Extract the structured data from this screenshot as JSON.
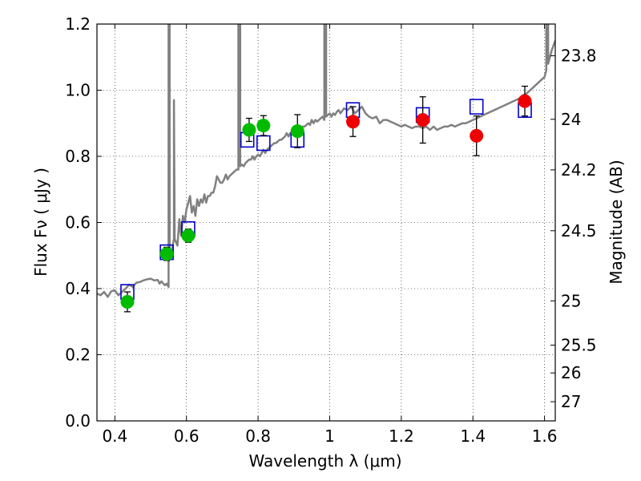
{
  "chart_data": {
    "type": "scatter",
    "title": "",
    "xlabel": "Wavelength  λ (μm)",
    "ylabel": "Flux  Fν  ( μJy )",
    "ylabel_right": "Magnitude (AB)",
    "xlim": [
      0.35,
      1.63
    ],
    "ylim": [
      0.0,
      1.2
    ],
    "grid": true,
    "x_ticks": [
      0.4,
      0.6,
      0.8,
      1.0,
      1.2,
      1.4,
      1.6
    ],
    "x_tick_labels": [
      "0.4",
      "0.6",
      "0.8",
      "1",
      "1.2",
      "1.4",
      "1.6"
    ],
    "y_ticks": [
      0.0,
      0.2,
      0.4,
      0.6,
      0.8,
      1.0,
      1.2
    ],
    "y_tick_labels": [
      "0.0",
      "0.2",
      "0.4",
      "0.6",
      "0.8",
      "1.0",
      "1.2"
    ],
    "right_ticks": [
      {
        "label": "23.8",
        "flux": 1.104
      },
      {
        "label": "24",
        "flux": 0.912
      },
      {
        "label": "24.2",
        "flux": 0.759
      },
      {
        "label": "24.5",
        "flux": 0.575
      },
      {
        "label": "25",
        "flux": 0.363
      },
      {
        "label": "25.5",
        "flux": 0.229
      },
      {
        "label": "26",
        "flux": 0.145
      },
      {
        "label": "27",
        "flux": 0.058
      }
    ],
    "series": [
      {
        "name": "model_spectrum",
        "kind": "line",
        "color": "#808080",
        "points": [
          [
            0.35,
            0.385
          ],
          [
            0.36,
            0.38
          ],
          [
            0.37,
            0.39
          ],
          [
            0.38,
            0.375
          ],
          [
            0.39,
            0.392
          ],
          [
            0.4,
            0.395
          ],
          [
            0.41,
            0.38
          ],
          [
            0.42,
            0.39
          ],
          [
            0.43,
            0.4
          ],
          [
            0.44,
            0.412
          ],
          [
            0.45,
            0.405
          ],
          [
            0.46,
            0.418
          ],
          [
            0.47,
            0.42
          ],
          [
            0.48,
            0.425
          ],
          [
            0.49,
            0.428
          ],
          [
            0.5,
            0.43
          ],
          [
            0.51,
            0.425
          ],
          [
            0.52,
            0.426
          ],
          [
            0.525,
            0.415
          ],
          [
            0.53,
            0.422
          ],
          [
            0.54,
            0.41
          ],
          [
            0.545,
            0.415
          ],
          [
            0.55,
            0.405
          ],
          [
            0.55,
            1.25
          ],
          [
            0.553,
            1.25
          ],
          [
            0.553,
            0.5
          ],
          [
            0.56,
            0.52
          ],
          [
            0.565,
            0.55
          ],
          [
            0.565,
            0.97
          ],
          [
            0.567,
            0.55
          ],
          [
            0.575,
            0.53
          ],
          [
            0.58,
            0.61
          ],
          [
            0.585,
            0.56
          ],
          [
            0.59,
            0.62
          ],
          [
            0.595,
            0.6
          ],
          [
            0.6,
            0.64
          ],
          [
            0.605,
            0.66
          ],
          [
            0.61,
            0.68
          ],
          [
            0.615,
            0.63
          ],
          [
            0.62,
            0.65
          ],
          [
            0.625,
            0.62
          ],
          [
            0.63,
            0.67
          ],
          [
            0.635,
            0.65
          ],
          [
            0.64,
            0.67
          ],
          [
            0.645,
            0.66
          ],
          [
            0.65,
            0.685
          ],
          [
            0.655,
            0.66
          ],
          [
            0.66,
            0.68
          ],
          [
            0.665,
            0.68
          ],
          [
            0.67,
            0.69
          ],
          [
            0.675,
            0.69
          ],
          [
            0.68,
            0.71
          ],
          [
            0.685,
            0.74
          ],
          [
            0.69,
            0.73
          ],
          [
            0.695,
            0.72
          ],
          [
            0.7,
            0.72
          ],
          [
            0.705,
            0.73
          ],
          [
            0.71,
            0.745
          ],
          [
            0.715,
            0.73
          ],
          [
            0.72,
            0.74
          ],
          [
            0.725,
            0.745
          ],
          [
            0.73,
            0.75
          ],
          [
            0.735,
            0.755
          ],
          [
            0.74,
            0.76
          ],
          [
            0.745,
            0.76
          ],
          [
            0.745,
            1.25
          ],
          [
            0.75,
            1.25
          ],
          [
            0.75,
            0.77
          ],
          [
            0.755,
            0.775
          ],
          [
            0.76,
            0.77
          ],
          [
            0.765,
            0.78
          ],
          [
            0.77,
            0.785
          ],
          [
            0.775,
            0.79
          ],
          [
            0.78,
            0.79
          ],
          [
            0.785,
            0.8
          ],
          [
            0.79,
            0.79
          ],
          [
            0.795,
            0.8
          ],
          [
            0.8,
            0.805
          ],
          [
            0.805,
            0.8
          ],
          [
            0.81,
            0.81
          ],
          [
            0.815,
            0.82
          ],
          [
            0.82,
            0.81
          ],
          [
            0.825,
            0.82
          ],
          [
            0.83,
            0.825
          ],
          [
            0.835,
            0.83
          ],
          [
            0.84,
            0.835
          ],
          [
            0.845,
            0.84
          ],
          [
            0.85,
            0.84
          ],
          [
            0.855,
            0.845
          ],
          [
            0.86,
            0.85
          ],
          [
            0.865,
            0.85
          ],
          [
            0.87,
            0.855
          ],
          [
            0.875,
            0.86
          ],
          [
            0.88,
            0.87
          ],
          [
            0.885,
            0.86
          ],
          [
            0.89,
            0.87
          ],
          [
            0.895,
            0.875
          ],
          [
            0.9,
            0.88
          ],
          [
            0.905,
            0.87
          ],
          [
            0.91,
            0.88
          ],
          [
            0.915,
            0.885
          ],
          [
            0.92,
            0.88
          ],
          [
            0.925,
            0.89
          ],
          [
            0.93,
            0.89
          ],
          [
            0.935,
            0.895
          ],
          [
            0.94,
            0.9
          ],
          [
            0.945,
            0.895
          ],
          [
            0.95,
            0.91
          ],
          [
            0.955,
            0.9
          ],
          [
            0.96,
            0.91
          ],
          [
            0.965,
            0.905
          ],
          [
            0.97,
            0.91
          ],
          [
            0.975,
            0.915
          ],
          [
            0.98,
            0.92
          ],
          [
            0.985,
            0.91
          ],
          [
            0.985,
            1.25
          ],
          [
            0.99,
            1.25
          ],
          [
            0.99,
            0.92
          ],
          [
            0.995,
            0.925
          ],
          [
            1.0,
            0.93
          ],
          [
            1.005,
            0.92
          ],
          [
            1.01,
            0.93
          ],
          [
            1.015,
            0.925
          ],
          [
            1.02,
            0.935
          ],
          [
            1.025,
            0.94
          ],
          [
            1.03,
            0.93
          ],
          [
            1.04,
            0.945
          ],
          [
            1.05,
            0.94
          ],
          [
            1.06,
            0.95
          ],
          [
            1.07,
            0.93
          ],
          [
            1.08,
            0.94
          ],
          [
            1.09,
            0.95
          ],
          [
            1.1,
            0.93
          ],
          [
            1.11,
            0.92
          ],
          [
            1.12,
            0.915
          ],
          [
            1.13,
            0.92
          ],
          [
            1.14,
            0.9
          ],
          [
            1.15,
            0.91
          ],
          [
            1.16,
            0.91
          ],
          [
            1.17,
            0.905
          ],
          [
            1.18,
            0.9
          ],
          [
            1.19,
            0.895
          ],
          [
            1.2,
            0.89
          ],
          [
            1.21,
            0.895
          ],
          [
            1.22,
            0.89
          ],
          [
            1.23,
            0.885
          ],
          [
            1.24,
            0.89
          ],
          [
            1.25,
            0.89
          ],
          [
            1.26,
            0.885
          ],
          [
            1.27,
            0.89
          ],
          [
            1.28,
            0.88
          ],
          [
            1.29,
            0.89
          ],
          [
            1.3,
            0.88
          ],
          [
            1.31,
            0.885
          ],
          [
            1.32,
            0.89
          ],
          [
            1.33,
            0.89
          ],
          [
            1.34,
            0.895
          ],
          [
            1.35,
            0.89
          ],
          [
            1.36,
            0.895
          ],
          [
            1.37,
            0.9
          ],
          [
            1.38,
            0.9
          ],
          [
            1.39,
            0.905
          ],
          [
            1.4,
            0.91
          ],
          [
            1.41,
            0.915
          ],
          [
            1.42,
            0.92
          ],
          [
            1.43,
            0.925
          ],
          [
            1.44,
            0.93
          ],
          [
            1.45,
            0.935
          ],
          [
            1.46,
            0.94
          ],
          [
            1.47,
            0.945
          ],
          [
            1.48,
            0.95
          ],
          [
            1.49,
            0.955
          ],
          [
            1.5,
            0.96
          ],
          [
            1.51,
            0.965
          ],
          [
            1.52,
            0.97
          ],
          [
            1.53,
            0.975
          ],
          [
            1.54,
            0.985
          ],
          [
            1.55,
            0.99
          ],
          [
            1.56,
            1.0
          ],
          [
            1.57,
            1.01
          ],
          [
            1.58,
            1.02
          ],
          [
            1.59,
            1.03
          ],
          [
            1.6,
            1.04
          ],
          [
            1.605,
            1.06
          ],
          [
            1.605,
            1.25
          ],
          [
            1.61,
            1.25
          ],
          [
            1.61,
            1.08
          ],
          [
            1.62,
            1.12
          ],
          [
            1.63,
            1.15
          ]
        ]
      },
      {
        "name": "model_photometry",
        "kind": "open-square",
        "color": "#0000cc",
        "points": [
          [
            0.435,
            0.39
          ],
          [
            0.545,
            0.51
          ],
          [
            0.605,
            0.58
          ],
          [
            0.77,
            0.85
          ],
          [
            0.815,
            0.84
          ],
          [
            0.91,
            0.85
          ],
          [
            1.065,
            0.94
          ],
          [
            1.26,
            0.925
          ],
          [
            1.41,
            0.95
          ],
          [
            1.545,
            0.94
          ]
        ]
      },
      {
        "name": "observed_optical",
        "kind": "filled-circle",
        "color": "#00bb00",
        "points": [
          {
            "x": 0.435,
            "y": 0.36,
            "err": 0.03
          },
          {
            "x": 0.545,
            "y": 0.505,
            "err": 0.02
          },
          {
            "x": 0.605,
            "y": 0.56,
            "err": 0.02
          },
          {
            "x": 0.775,
            "y": 0.88,
            "err": 0.035
          },
          {
            "x": 0.815,
            "y": 0.893,
            "err": 0.03
          },
          {
            "x": 0.91,
            "y": 0.876,
            "err": 0.05
          }
        ]
      },
      {
        "name": "observed_nir",
        "kind": "filled-circle",
        "color": "#ee0000",
        "points": [
          {
            "x": 1.065,
            "y": 0.905,
            "err": 0.045
          },
          {
            "x": 1.26,
            "y": 0.91,
            "err": 0.07
          },
          {
            "x": 1.41,
            "y": 0.862,
            "err": 0.06
          },
          {
            "x": 1.545,
            "y": 0.967,
            "err": 0.045
          }
        ]
      }
    ]
  }
}
